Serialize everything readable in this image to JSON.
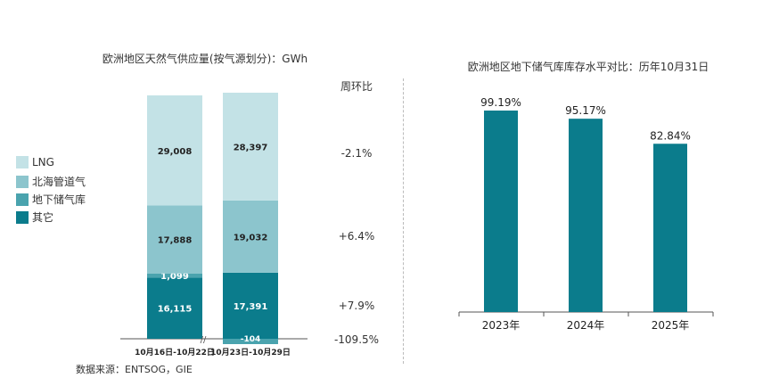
{
  "chart_data": [
    {
      "type": "bar",
      "stacked": true,
      "title": "欧洲地区天然气供应量(按气源划分)：GWh",
      "categories": [
        "10月16日-10月22日",
        "10月23日-10月29日"
      ],
      "series": [
        {
          "name": "其它",
          "values": [
            16115,
            17391
          ],
          "labels": [
            "16,115",
            "17,391"
          ],
          "color": "#0b7c8c"
        },
        {
          "name": "地下储气库",
          "values": [
            1099,
            -104
          ],
          "labels": [
            "1,099",
            "-104"
          ],
          "color": "#4aa3ae"
        },
        {
          "name": "北海管道气",
          "values": [
            17888,
            19032
          ],
          "labels": [
            "17,888",
            "19,032"
          ],
          "color": "#8cc5cd"
        },
        {
          "name": "LNG",
          "values": [
            29008,
            28397
          ],
          "labels": [
            "29,008",
            "28,397"
          ],
          "color": "#c3e2e6"
        }
      ],
      "legend_order": [
        "LNG",
        "北海管道气",
        "地下储气库",
        "其它"
      ],
      "wow_header": "周环比",
      "wow_values": [
        "-2.1%",
        "+6.4%",
        "+7.9%",
        "-109.5%"
      ],
      "axis_break": "//"
    },
    {
      "type": "bar",
      "title": "欧洲地区地下储气库库存水平对比：历年10月31日",
      "categories": [
        "2023年",
        "2024年",
        "2025年"
      ],
      "values": [
        99.19,
        95.17,
        82.84
      ],
      "labels": [
        "99.19%",
        "95.17%",
        "82.84%"
      ],
      "ylim": [
        0,
        100
      ],
      "color": "#0b7c8c"
    }
  ],
  "source": "数据来源：ENTSOG，GIE"
}
